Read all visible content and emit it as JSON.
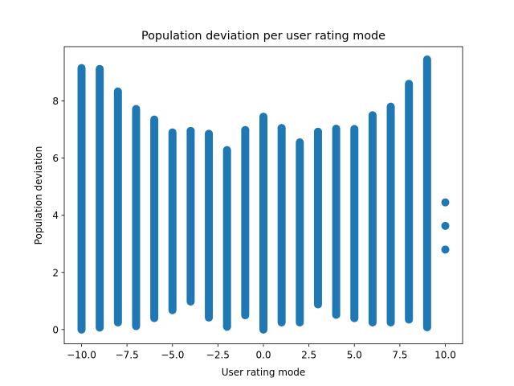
{
  "chart_data": {
    "type": "scatter",
    "title": "Population deviation per user rating mode",
    "xlabel": "User rating mode",
    "ylabel": "Population deviation",
    "xlim": [
      -10.95,
      10.95
    ],
    "ylim": [
      -0.5,
      9.9
    ],
    "xticks": [
      -10.0,
      -7.5,
      -5.0,
      -2.5,
      0.0,
      2.5,
      5.0,
      7.5,
      10.0
    ],
    "xtick_labels": [
      "−10.0",
      "−7.5",
      "−5.0",
      "−2.5",
      "0.0",
      "2.5",
      "5.0",
      "7.5",
      "10.0"
    ],
    "yticks": [
      0,
      2,
      4,
      6,
      8
    ],
    "ytick_labels": [
      "0",
      "2",
      "4",
      "6",
      "8"
    ],
    "grid": false,
    "marker_color": "#1f77b4",
    "columns": [
      {
        "x": -10,
        "ymin": 0.0,
        "ymax": 9.15
      },
      {
        "x": -9,
        "ymin": 0.07,
        "ymax": 9.12
      },
      {
        "x": -8,
        "ymin": 0.25,
        "ymax": 8.33
      },
      {
        "x": -7,
        "ymin": 0.12,
        "ymax": 7.72
      },
      {
        "x": -6,
        "ymin": 0.4,
        "ymax": 7.35
      },
      {
        "x": -5,
        "ymin": 0.68,
        "ymax": 6.9
      },
      {
        "x": -4,
        "ymin": 0.98,
        "ymax": 6.95
      },
      {
        "x": -3,
        "ymin": 0.42,
        "ymax": 6.85
      },
      {
        "x": -2,
        "ymin": 0.1,
        "ymax": 6.28
      },
      {
        "x": -1,
        "ymin": 0.5,
        "ymax": 6.98
      },
      {
        "x": 0,
        "ymin": 0.0,
        "ymax": 7.45
      },
      {
        "x": 1,
        "ymin": 0.25,
        "ymax": 7.05
      },
      {
        "x": 2,
        "ymin": 0.25,
        "ymax": 6.55
      },
      {
        "x": 3,
        "ymin": 0.88,
        "ymax": 6.92
      },
      {
        "x": 4,
        "ymin": 0.52,
        "ymax": 7.03
      },
      {
        "x": 5,
        "ymin": 0.4,
        "ymax": 7.02
      },
      {
        "x": 6,
        "ymin": 0.25,
        "ymax": 7.5
      },
      {
        "x": 7,
        "ymin": 0.25,
        "ymax": 7.8
      },
      {
        "x": 8,
        "ymin": 0.35,
        "ymax": 8.6
      },
      {
        "x": 9,
        "ymin": 0.08,
        "ymax": 9.45
      }
    ],
    "points": [
      {
        "x": 10,
        "y": 4.45
      },
      {
        "x": 10,
        "y": 3.63
      },
      {
        "x": 10,
        "y": 2.8
      },
      {
        "x": 1,
        "y": 7.05
      },
      {
        "x": 4,
        "y": 0.52
      },
      {
        "x": 5,
        "y": 0.4
      },
      {
        "x": -2,
        "y": 0.1
      },
      {
        "x": -4,
        "y": 6.95
      },
      {
        "x": -3,
        "y": 6.85
      },
      {
        "x": 3,
        "y": 6.92
      },
      {
        "x": -1,
        "y": 6.98
      }
    ]
  }
}
